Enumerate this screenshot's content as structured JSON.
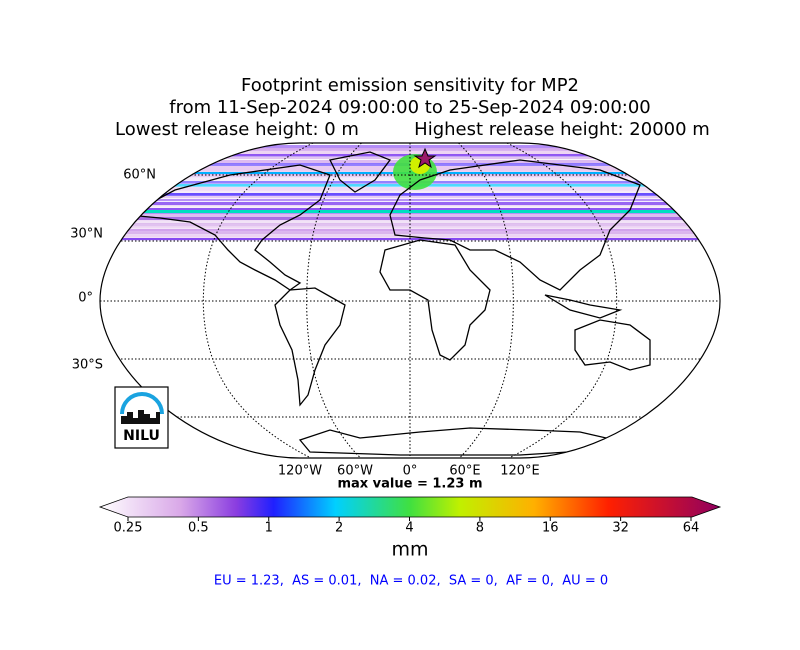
{
  "title": {
    "line1": "Footprint emission sensitivity for MP2",
    "line2": "from 11-Sep-2024 09:00:00 to 25-Sep-2024 09:00:00",
    "line3_left": "Lowest release height: 0 m",
    "line3_right": "Highest release height: 20000 m"
  },
  "map": {
    "lat_labels": [
      "60°N",
      "30°N",
      "0°",
      "30°S"
    ],
    "lon_labels": [
      "120°W",
      "60°W",
      "0°",
      "60°E",
      "120°E"
    ],
    "max_value": "max value = 1.23 m",
    "logo": "NILU"
  },
  "colorbar": {
    "ticks": [
      0.25,
      0.5,
      1,
      2,
      4,
      8,
      16,
      32,
      64
    ],
    "unit": "mm"
  },
  "regions": "EU = 1.23,  AS = 0.01,  NA = 0.02,  SA = 0,  AF = 0,  AU = 0"
}
